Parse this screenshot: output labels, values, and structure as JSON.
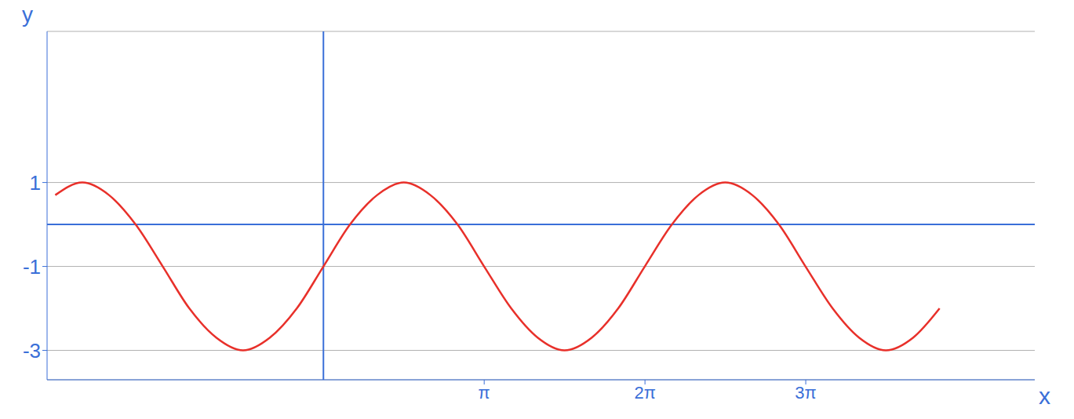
{
  "chart_data": {
    "type": "line",
    "x_label": "x",
    "y_label": "y",
    "x": [
      -5.24,
      -4.71,
      -4.19,
      -3.67,
      -3.14,
      -2.62,
      -2.09,
      -1.57,
      -1.05,
      -0.52,
      0,
      0.52,
      1.05,
      1.57,
      2.09,
      2.62,
      3.14,
      3.67,
      4.19,
      4.71,
      5.24,
      5.76,
      6.28,
      6.81,
      7.33,
      7.85,
      8.38,
      8.9,
      9.42,
      9.95,
      10.47,
      10.99,
      11.52,
      12.04
    ],
    "values": [
      0.7,
      1,
      0.7,
      0,
      -1,
      -2,
      -2.7,
      -3,
      -2.7,
      -2,
      -1,
      0,
      0.7,
      1,
      0.7,
      0,
      -1,
      -2,
      -2.7,
      -3,
      -2.7,
      -2,
      -1,
      0,
      0.7,
      1,
      0.7,
      0,
      -1,
      -2,
      -2.7,
      -3,
      -2.7,
      -2
    ],
    "color": "#e8302a",
    "xlim": [
      -5.4,
      13.9
    ],
    "ylim": [
      -3.7,
      4.6
    ],
    "xticks": [
      {
        "value": 3.1416,
        "label": "π"
      },
      {
        "value": 6.2832,
        "label": "2π"
      },
      {
        "value": 9.4248,
        "label": "3π"
      }
    ],
    "yticks": [
      -3,
      -1,
      1
    ],
    "grid": true
  }
}
